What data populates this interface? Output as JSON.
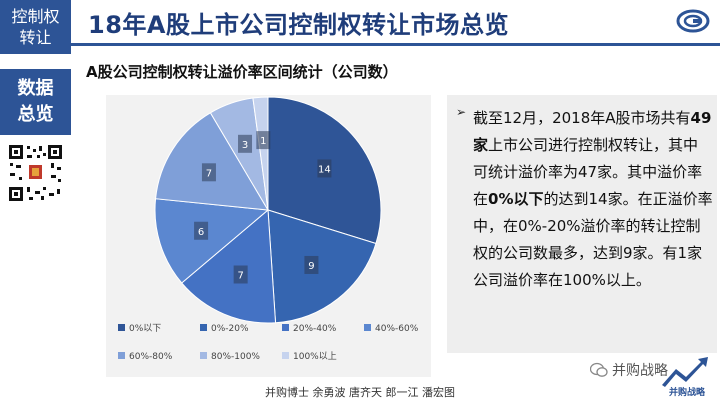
{
  "sidebar": {
    "top_line1": "控制权",
    "top_line2": "转让",
    "section_line1": "数据",
    "section_line2": "总览"
  },
  "header": {
    "title": "18年A股上市公司控制权转让市场总览"
  },
  "subtitle": "A股公司控制权转让溢价率区间统计（公司数）",
  "textbox": {
    "bullet": "➢",
    "p1": "截至12月，2018年A股市场共有",
    "b1": "49家",
    "p2": "上市公司进行控制权转让，其中可统计溢价率为47家。其中溢价率在",
    "b2": "0%以下",
    "p3": "的达到14家。在正溢价率中，在0%-20%溢价率的转让控制权的公司数最多，达到9家。有1家公司溢价率在100%以上。"
  },
  "footer": "并购博士 余勇波 唐齐天 郎一江 潘宏图",
  "watermark": "并购战略",
  "brand_text": "并购战略",
  "colors": {
    "primary": "#2d5496",
    "slices": [
      "#2f5597",
      "#3565b0",
      "#4472c4",
      "#5b87d0",
      "#7f9fd8",
      "#a3b9e3",
      "#c6d3ee"
    ]
  },
  "chart_data": {
    "type": "pie",
    "categories": [
      "0%以下",
      "0%-20%",
      "20%-40%",
      "40%-60%",
      "60%-80%",
      "80%-100%",
      "100%以上"
    ],
    "values": [
      14,
      9,
      7,
      6,
      7,
      3,
      1
    ],
    "title": "",
    "legend": "bottom"
  }
}
